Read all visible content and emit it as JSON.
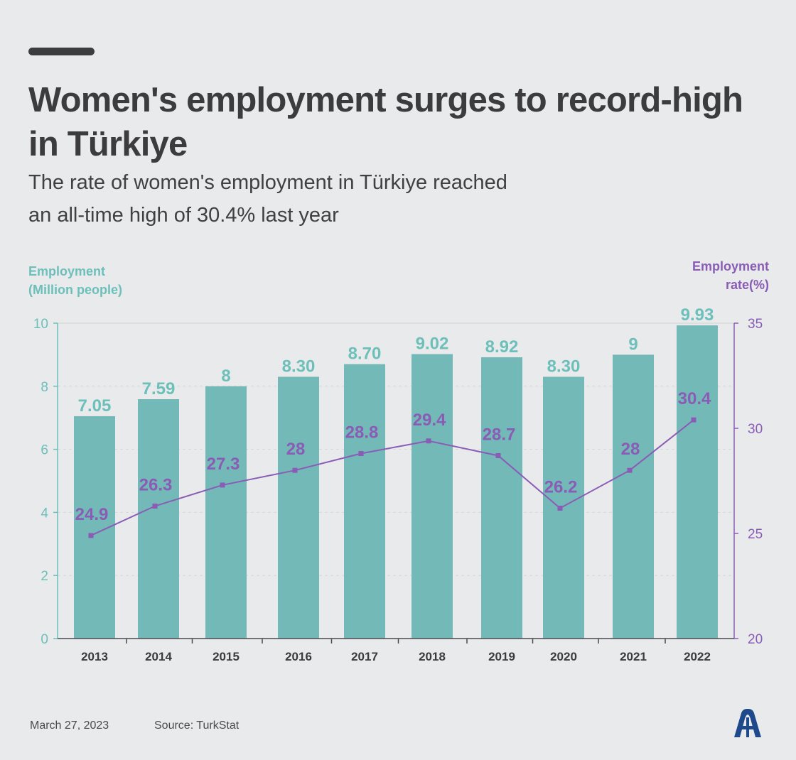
{
  "header": {
    "title_line1": "Women's employment surges to record-high",
    "title_line2": "in Türkiye",
    "subtitle_line1": "The rate of women's employment in Türkiye reached",
    "subtitle_line2": "an all-time high of 30.4% last year"
  },
  "axes": {
    "left_title_line1": "Employment",
    "left_title_line2": "(Million people)",
    "right_title_line1": "Employment",
    "right_title_line2": "rate(%)"
  },
  "footer": {
    "date": "March 27, 2023",
    "source": "Source: TurkStat"
  },
  "logo": {
    "icon": "aa-logo-icon",
    "color": "#1e4a8c"
  },
  "colors": {
    "bar": "#73b9b8",
    "bar_label": "#6dbfba",
    "line": "#8a5cb5",
    "left_axis": "#6dbfba",
    "right_axis": "#8a5cb5"
  },
  "chart_data": {
    "type": "bar",
    "categories": [
      "2013",
      "2014",
      "2015",
      "2016",
      "2017",
      "2018",
      "2019",
      "2020",
      "2021",
      "2022"
    ],
    "series": [
      {
        "name": "Employment (Million people)",
        "type": "bar",
        "axis": "left",
        "values": [
          7.05,
          7.59,
          8,
          8.3,
          8.7,
          9.02,
          8.92,
          8.3,
          9,
          9.93
        ],
        "labels": [
          "7.05",
          "7.59",
          "8",
          "8.30",
          "8.70",
          "9.02",
          "8.92",
          "8.30",
          "9",
          "9.93"
        ]
      },
      {
        "name": "Employment rate(%)",
        "type": "line",
        "axis": "right",
        "values": [
          24.9,
          26.3,
          27.3,
          28,
          28.8,
          29.4,
          28.7,
          26.2,
          28,
          30.4
        ],
        "labels": [
          "24.9",
          "26.3",
          "27.3",
          "28",
          "28.8",
          "29.4",
          "28.7",
          "26.2",
          "28",
          "30.4"
        ]
      }
    ],
    "y_left": {
      "range": [
        0,
        10
      ],
      "ticks": [
        "0",
        "2",
        "4",
        "6",
        "8",
        "10"
      ]
    },
    "y_right": {
      "range": [
        20,
        35
      ],
      "ticks": [
        "20",
        "25",
        "30",
        "35"
      ]
    },
    "grid": true
  }
}
